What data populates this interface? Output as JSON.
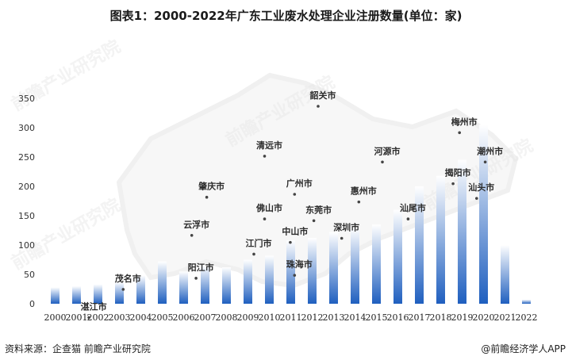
{
  "chart_data": {
    "type": "bar",
    "title": "图表1：2000-2022年广东工业废水处理企业注册数量(单位：家)",
    "categories": [
      "2000",
      "2001",
      "2002",
      "2003",
      "2004",
      "2005",
      "2006",
      "2007",
      "2008",
      "2009",
      "2010",
      "2011",
      "2012",
      "2013",
      "2014",
      "2015",
      "2016",
      "2017",
      "2018",
      "2019",
      "2020",
      "2021",
      "2022"
    ],
    "values": [
      28,
      30,
      33,
      37,
      48,
      72,
      55,
      65,
      62,
      75,
      82,
      108,
      112,
      122,
      130,
      135,
      160,
      200,
      218,
      245,
      305,
      100,
      7
    ],
    "ylim": [
      0,
      350
    ],
    "yticks": [
      0,
      50,
      100,
      150,
      200,
      250,
      300,
      350
    ],
    "bar_color_top": "#ffffff",
    "bar_color_bottom": "#1f5fbf",
    "overlay_labels": [
      {
        "name": "韶关市",
        "x": 2012.5,
        "y": 350
      },
      {
        "name": "梅州市",
        "x": 2019.1,
        "y": 305
      },
      {
        "name": "清远市",
        "x": 2010,
        "y": 265
      },
      {
        "name": "河源市",
        "x": 2015.5,
        "y": 255
      },
      {
        "name": "潮州市",
        "x": 2020.3,
        "y": 255
      },
      {
        "name": "揭阳市",
        "x": 2018.8,
        "y": 218
      },
      {
        "name": "广州市",
        "x": 2011.4,
        "y": 200
      },
      {
        "name": "肇庆市",
        "x": 2007.3,
        "y": 195
      },
      {
        "name": "汕头市",
        "x": 2019.9,
        "y": 193
      },
      {
        "name": "惠州市",
        "x": 2014.4,
        "y": 187
      },
      {
        "name": "佛山市",
        "x": 2010,
        "y": 158
      },
      {
        "name": "东莞市",
        "x": 2012.3,
        "y": 155
      },
      {
        "name": "汕尾市",
        "x": 2016.7,
        "y": 158
      },
      {
        "name": "云浮市",
        "x": 2006.6,
        "y": 130
      },
      {
        "name": "深圳市",
        "x": 2013.6,
        "y": 125
      },
      {
        "name": "中山市",
        "x": 2011.2,
        "y": 118
      },
      {
        "name": "江门市",
        "x": 2009.5,
        "y": 98
      },
      {
        "name": "珠海市",
        "x": 2011.4,
        "y": 62
      },
      {
        "name": "阳江市",
        "x": 2006.8,
        "y": 57
      },
      {
        "name": "茂名市",
        "x": 2003.4,
        "y": 38
      },
      {
        "name": "湛江市",
        "x": 2001.8,
        "y": -10
      }
    ]
  },
  "footer": {
    "source": "资料来源：企查猫 前瞻产业研究院",
    "brand": "@前瞻经济学人APP"
  }
}
